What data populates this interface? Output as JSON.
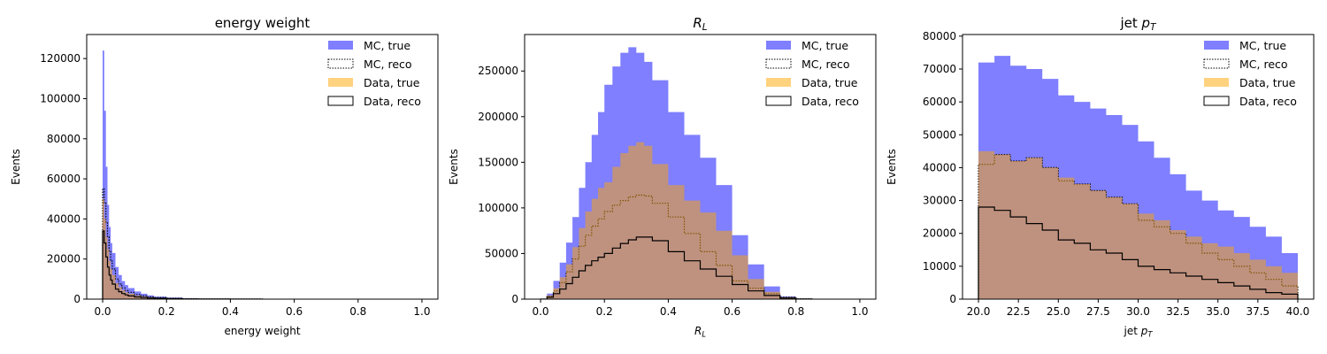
{
  "chart_data": [
    {
      "type": "histogram",
      "title": "energy weight",
      "xlabel": "energy weight",
      "ylabel": "Events",
      "xlim": [
        -0.05,
        1.05
      ],
      "ylim": [
        0,
        132000
      ],
      "xticks": [
        0.0,
        0.2,
        0.4,
        0.6,
        0.8,
        1.0
      ],
      "xtick_labels": [
        "0.0",
        "0.2",
        "0.4",
        "0.6",
        "0.8",
        "1.0"
      ],
      "yticks": [
        0,
        20000,
        40000,
        60000,
        80000,
        100000,
        120000
      ],
      "ytick_labels": [
        "0",
        "20000",
        "40000",
        "60000",
        "80000",
        "100000",
        "120000"
      ],
      "legend": [
        "MC, true",
        "MC, reco",
        "Data, true",
        "Data, reco"
      ],
      "legend_position": "top-right",
      "grid": false,
      "series": [
        {
          "name": "MC, true",
          "x": [
            0.0,
            0.005,
            0.01,
            0.015,
            0.02,
            0.025,
            0.03,
            0.04,
            0.05,
            0.06,
            0.07,
            0.08,
            0.1,
            0.12,
            0.14,
            0.16,
            0.2,
            0.25,
            0.3,
            0.4,
            0.5
          ],
          "values": [
            124000,
            94000,
            66000,
            47000,
            36000,
            28000,
            23000,
            16000,
            12000,
            9000,
            7000,
            5500,
            3800,
            2700,
            1900,
            1300,
            800,
            400,
            200,
            60,
            0
          ]
        },
        {
          "name": "MC, reco",
          "x": [
            0.0,
            0.005,
            0.01,
            0.015,
            0.02,
            0.025,
            0.03,
            0.04,
            0.05,
            0.06,
            0.07,
            0.08,
            0.1,
            0.12,
            0.14,
            0.16,
            0.2,
            0.25,
            0.3,
            0.4,
            0.5
          ],
          "values": [
            55000,
            48000,
            38000,
            31000,
            24000,
            19000,
            15000,
            10000,
            7500,
            5600,
            4300,
            3400,
            2300,
            1600,
            1100,
            800,
            450,
            220,
            110,
            30,
            0
          ]
        },
        {
          "name": "Data, true",
          "x": [
            0.0,
            0.005,
            0.01,
            0.015,
            0.02,
            0.025,
            0.03,
            0.04,
            0.05,
            0.06,
            0.07,
            0.08,
            0.1,
            0.12,
            0.14,
            0.16,
            0.2,
            0.25,
            0.3,
            0.4,
            0.5
          ],
          "values": [
            50000,
            40000,
            31000,
            25000,
            19000,
            15000,
            12000,
            8000,
            6000,
            4500,
            3400,
            2700,
            1800,
            1300,
            900,
            600,
            350,
            170,
            80,
            20,
            0
          ]
        },
        {
          "name": "Data, reco",
          "x": [
            0.0,
            0.005,
            0.01,
            0.015,
            0.02,
            0.025,
            0.03,
            0.04,
            0.05,
            0.06,
            0.07,
            0.08,
            0.1,
            0.12,
            0.14,
            0.16,
            0.2,
            0.25,
            0.3,
            0.4,
            0.5
          ],
          "values": [
            34000,
            28000,
            21000,
            16000,
            12000,
            9500,
            7500,
            5000,
            3700,
            2800,
            2100,
            1600,
            1100,
            800,
            550,
            380,
            220,
            100,
            50,
            10,
            0
          ]
        }
      ]
    },
    {
      "type": "histogram",
      "title": "R_L",
      "xlabel": "R_L",
      "ylabel": "Events",
      "xlim": [
        -0.05,
        1.05
      ],
      "ylim": [
        0,
        290000
      ],
      "xticks": [
        0.0,
        0.2,
        0.4,
        0.6,
        0.8,
        1.0
      ],
      "xtick_labels": [
        "0.0",
        "0.2",
        "0.4",
        "0.6",
        "0.8",
        "1.0"
      ],
      "yticks": [
        0,
        50000,
        100000,
        150000,
        200000,
        250000
      ],
      "ytick_labels": [
        "0",
        "50000",
        "100000",
        "150000",
        "200000",
        "250000"
      ],
      "legend": [
        "MC, true",
        "MC, reco",
        "Data, true",
        "Data, reco"
      ],
      "legend_position": "top-right",
      "grid": false,
      "series": [
        {
          "name": "MC, true",
          "x": [
            0.0,
            0.02,
            0.04,
            0.06,
            0.08,
            0.1,
            0.12,
            0.14,
            0.16,
            0.18,
            0.2,
            0.225,
            0.25,
            0.275,
            0.3,
            0.325,
            0.35,
            0.4,
            0.45,
            0.5,
            0.55,
            0.6,
            0.65,
            0.7,
            0.75,
            0.8,
            0.85
          ],
          "values": [
            0,
            6000,
            20000,
            40000,
            62000,
            90000,
            122000,
            150000,
            180000,
            205000,
            235000,
            255000,
            270000,
            276000,
            270000,
            260000,
            240000,
            205000,
            180000,
            155000,
            125000,
            70000,
            38000,
            14000,
            3000,
            500,
            0
          ]
        },
        {
          "name": "MC, reco",
          "x": [
            0.0,
            0.02,
            0.04,
            0.06,
            0.08,
            0.1,
            0.12,
            0.14,
            0.16,
            0.18,
            0.2,
            0.225,
            0.25,
            0.275,
            0.3,
            0.325,
            0.35,
            0.4,
            0.45,
            0.5,
            0.55,
            0.6,
            0.65,
            0.7,
            0.75,
            0.8,
            0.85
          ],
          "values": [
            0,
            3000,
            9000,
            18000,
            30000,
            44000,
            58000,
            70000,
            80000,
            88000,
            96000,
            103000,
            108000,
            112000,
            114000,
            113000,
            105000,
            90000,
            72000,
            52000,
            37000,
            20000,
            12000,
            6000,
            2000,
            300,
            0
          ]
        },
        {
          "name": "Data, true",
          "x": [
            0.0,
            0.02,
            0.04,
            0.06,
            0.08,
            0.1,
            0.12,
            0.14,
            0.16,
            0.18,
            0.2,
            0.225,
            0.25,
            0.275,
            0.3,
            0.325,
            0.35,
            0.4,
            0.45,
            0.5,
            0.55,
            0.6,
            0.65,
            0.7,
            0.75,
            0.8,
            0.85
          ],
          "values": [
            0,
            4000,
            12000,
            24000,
            38000,
            57000,
            78000,
            96000,
            110000,
            122000,
            128000,
            145000,
            160000,
            168000,
            172000,
            168000,
            148000,
            125000,
            108000,
            95000,
            75000,
            48000,
            22000,
            8000,
            2000,
            300,
            0
          ]
        },
        {
          "name": "Data, reco",
          "x": [
            0.0,
            0.02,
            0.04,
            0.06,
            0.08,
            0.1,
            0.12,
            0.14,
            0.16,
            0.18,
            0.2,
            0.225,
            0.25,
            0.275,
            0.3,
            0.325,
            0.35,
            0.4,
            0.45,
            0.5,
            0.55,
            0.6,
            0.65,
            0.7,
            0.75,
            0.8,
            0.85
          ],
          "values": [
            0,
            2000,
            6000,
            11000,
            17000,
            24000,
            31000,
            37000,
            42000,
            46000,
            50000,
            56000,
            61000,
            65000,
            68000,
            68000,
            64000,
            52000,
            42000,
            33000,
            25000,
            16000,
            9000,
            4000,
            1200,
            200,
            0
          ]
        }
      ]
    },
    {
      "type": "histogram",
      "title": "jet p_T",
      "xlabel": "jet p_T",
      "ylabel": "Events",
      "xlim": [
        19.0,
        41.0
      ],
      "ylim": [
        0,
        80500
      ],
      "xticks": [
        20.0,
        22.5,
        25.0,
        27.5,
        30.0,
        32.5,
        35.0,
        37.5,
        40.0
      ],
      "xtick_labels": [
        "20.0",
        "22.5",
        "25.0",
        "27.5",
        "30.0",
        "32.5",
        "35.0",
        "37.5",
        "40.0"
      ],
      "yticks": [
        0,
        10000,
        20000,
        30000,
        40000,
        50000,
        60000,
        70000,
        80000
      ],
      "ytick_labels": [
        "0",
        "10000",
        "20000",
        "30000",
        "40000",
        "50000",
        "60000",
        "70000",
        "80000"
      ],
      "legend": [
        "MC, true",
        "MC, reco",
        "Data, true",
        "Data, reco"
      ],
      "legend_position": "top-right",
      "grid": false,
      "series": [
        {
          "name": "MC, true",
          "x": [
            20.0,
            21.0,
            22.0,
            23.0,
            24.0,
            25.0,
            26.0,
            27.0,
            28.0,
            29.0,
            30.0,
            31.0,
            32.0,
            33.0,
            34.0,
            35.0,
            36.0,
            37.0,
            38.0,
            39.0,
            40.0
          ],
          "values": [
            72000,
            74000,
            71000,
            70000,
            67000,
            62000,
            60000,
            58000,
            56000,
            53000,
            48000,
            43000,
            38000,
            33000,
            30000,
            27000,
            25000,
            22000,
            19000,
            14000,
            0
          ]
        },
        {
          "name": "MC, reco",
          "x": [
            20.0,
            21.0,
            22.0,
            23.0,
            24.0,
            25.0,
            26.0,
            27.0,
            28.0,
            29.0,
            30.0,
            31.0,
            32.0,
            33.0,
            34.0,
            35.0,
            36.0,
            37.0,
            38.0,
            39.0,
            40.0
          ],
          "values": [
            41000,
            44000,
            42000,
            43000,
            40000,
            36000,
            35000,
            33000,
            31000,
            29000,
            24000,
            22000,
            20000,
            17000,
            14000,
            12000,
            10000,
            8000,
            6000,
            4000,
            0
          ]
        },
        {
          "name": "Data, true",
          "x": [
            20.0,
            21.0,
            22.0,
            23.0,
            24.0,
            25.0,
            26.0,
            27.0,
            28.0,
            29.0,
            30.0,
            31.0,
            32.0,
            33.0,
            34.0,
            35.0,
            36.0,
            37.0,
            38.0,
            39.0,
            40.0
          ],
          "values": [
            45000,
            44000,
            42000,
            43000,
            40000,
            37000,
            35000,
            33000,
            31000,
            29000,
            26000,
            24000,
            21000,
            19000,
            17000,
            16000,
            14000,
            12000,
            10000,
            8000,
            0
          ]
        },
        {
          "name": "Data, reco",
          "x": [
            20.0,
            21.0,
            22.0,
            23.0,
            24.0,
            25.0,
            26.0,
            27.0,
            28.0,
            29.0,
            30.0,
            31.0,
            32.0,
            33.0,
            34.0,
            35.0,
            36.0,
            37.0,
            38.0,
            39.0,
            40.0
          ],
          "values": [
            28000,
            27000,
            25000,
            23000,
            21000,
            18000,
            17000,
            15000,
            14000,
            12000,
            10000,
            9000,
            8000,
            7000,
            6000,
            5000,
            4000,
            3000,
            2000,
            1500,
            0
          ]
        }
      ]
    }
  ]
}
